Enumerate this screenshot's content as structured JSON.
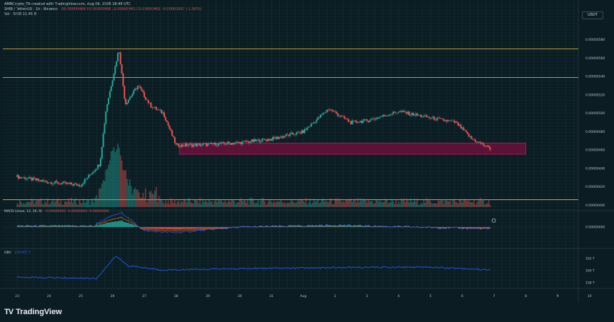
{
  "header": {
    "caption": "AMBCrypto_TA created with TradingView.com, Aug 06, 2026 18:48 UTC",
    "symbol_line": "SHIB / TetherUS · 1h · Binance",
    "ohlc_line": "O0.00000468 H0.00000468 L0.00000461 C0.00000461 -0.00000007 (-1.50%)",
    "vol_line": "Vol · SHIB  11.46 B"
  },
  "scale": {
    "currency": "USDT"
  },
  "indicators": {
    "macd_label": "MACD (close, 12, 26, 9)",
    "macd_values": "-0.00000002  -0.00000002  -0.00000000",
    "obv_label": "OBV",
    "obv_value": "159.957 T"
  },
  "branding": {
    "logo": "TV",
    "name": "TradingView"
  },
  "colors": {
    "background": "#0b1d22",
    "up": "#26a69a",
    "down": "#ef5350",
    "level_line": "#f0c14b",
    "zone_fill": "#6b0f3a",
    "obv_line": "#2962ff",
    "macd_line": "#2962ff",
    "signal_line": "#ff6d00"
  },
  "chart_data": [
    {
      "type": "candlestick",
      "title": "SHIB / TetherUS · 1h · Binance",
      "x_ticks": [
        "23",
        "24",
        "25",
        "26",
        "27",
        "28",
        "29",
        "30",
        "31",
        "Aug",
        "2",
        "3",
        "4",
        "5",
        "6",
        "7",
        "8",
        "9",
        "10",
        "11"
      ],
      "y_ticks": [
        "0.00000580",
        "0.00000560",
        "0.00000540",
        "0.00000520",
        "0.00000500",
        "0.00000480",
        "0.00000460",
        "0.00000440",
        "0.00000420",
        "0.00000400"
      ],
      "ylim": [
        3.98e-06,
        6e-06
      ],
      "grid": true,
      "horizontal_levels": [
        5.7e-06,
        5.39e-06,
        4.06e-06
      ],
      "demand_zone": {
        "low": 4.555e-06,
        "high": 4.675e-06,
        "from_day": 28.1,
        "to_day": 39.0
      },
      "key_points": [
        {
          "day": 23.0,
          "close": 4.31e-06
        },
        {
          "day": 24.0,
          "close": 4.25e-06
        },
        {
          "day": 25.0,
          "close": 4.22e-06
        },
        {
          "day": 25.6,
          "close": 4.45e-06
        },
        {
          "day": 25.8,
          "close": 5.05e-06
        },
        {
          "day": 26.2,
          "close": 5.7e-06
        },
        {
          "day": 26.4,
          "close": 5.1e-06
        },
        {
          "day": 26.8,
          "close": 5.3e-06
        },
        {
          "day": 27.2,
          "close": 5.08e-06
        },
        {
          "day": 27.6,
          "close": 5e-06
        },
        {
          "day": 28.0,
          "close": 4.65e-06
        },
        {
          "day": 29.0,
          "close": 4.66e-06
        },
        {
          "day": 30.0,
          "close": 4.68e-06
        },
        {
          "day": 31.0,
          "close": 4.72e-06
        },
        {
          "day": 32.0,
          "close": 4.8e-06
        },
        {
          "day": 32.8,
          "close": 5.05e-06
        },
        {
          "day": 33.5,
          "close": 4.9e-06
        },
        {
          "day": 34.0,
          "close": 4.92e-06
        },
        {
          "day": 35.0,
          "close": 5.02e-06
        },
        {
          "day": 36.0,
          "close": 4.95e-06
        },
        {
          "day": 36.8,
          "close": 4.9e-06
        },
        {
          "day": 37.3,
          "close": 4.72e-06
        },
        {
          "day": 37.7,
          "close": 4.65e-06
        },
        {
          "day": 37.9,
          "close": 4.61e-06
        }
      ],
      "volume_spike_day": 26.1
    },
    {
      "type": "histogram",
      "title": "MACD (close, 12, 26, 9)",
      "y_ticks": [
        "0.00000000"
      ],
      "ylim": [
        -4.5e-08,
        3e-08
      ],
      "key_points": [
        {
          "day": 25.5,
          "hist": 4e-09
        },
        {
          "day": 26.0,
          "hist": 1.2e-08
        },
        {
          "day": 26.3,
          "hist": 1.5e-08
        },
        {
          "day": 27.0,
          "hist": -4e-09
        },
        {
          "day": 28.0,
          "hist": -6e-09
        },
        {
          "day": 30.0,
          "hist": 0.0
        },
        {
          "day": 33.0,
          "hist": 2e-09
        },
        {
          "day": 37.9,
          "hist": -2e-09
        }
      ]
    },
    {
      "type": "line",
      "title": "OBV",
      "y_ticks": [
        "162 T",
        "160 T",
        "158 T"
      ],
      "ylim": [
        157.5,
        163.2
      ],
      "key_points": [
        {
          "day": 23.0,
          "value": 158.9
        },
        {
          "day": 25.5,
          "value": 158.7
        },
        {
          "day": 26.1,
          "value": 162.4
        },
        {
          "day": 26.5,
          "value": 160.8
        },
        {
          "day": 27.5,
          "value": 160.1
        },
        {
          "day": 30.0,
          "value": 160.3
        },
        {
          "day": 33.0,
          "value": 160.5
        },
        {
          "day": 36.0,
          "value": 160.6
        },
        {
          "day": 37.9,
          "value": 160.1
        }
      ]
    }
  ]
}
